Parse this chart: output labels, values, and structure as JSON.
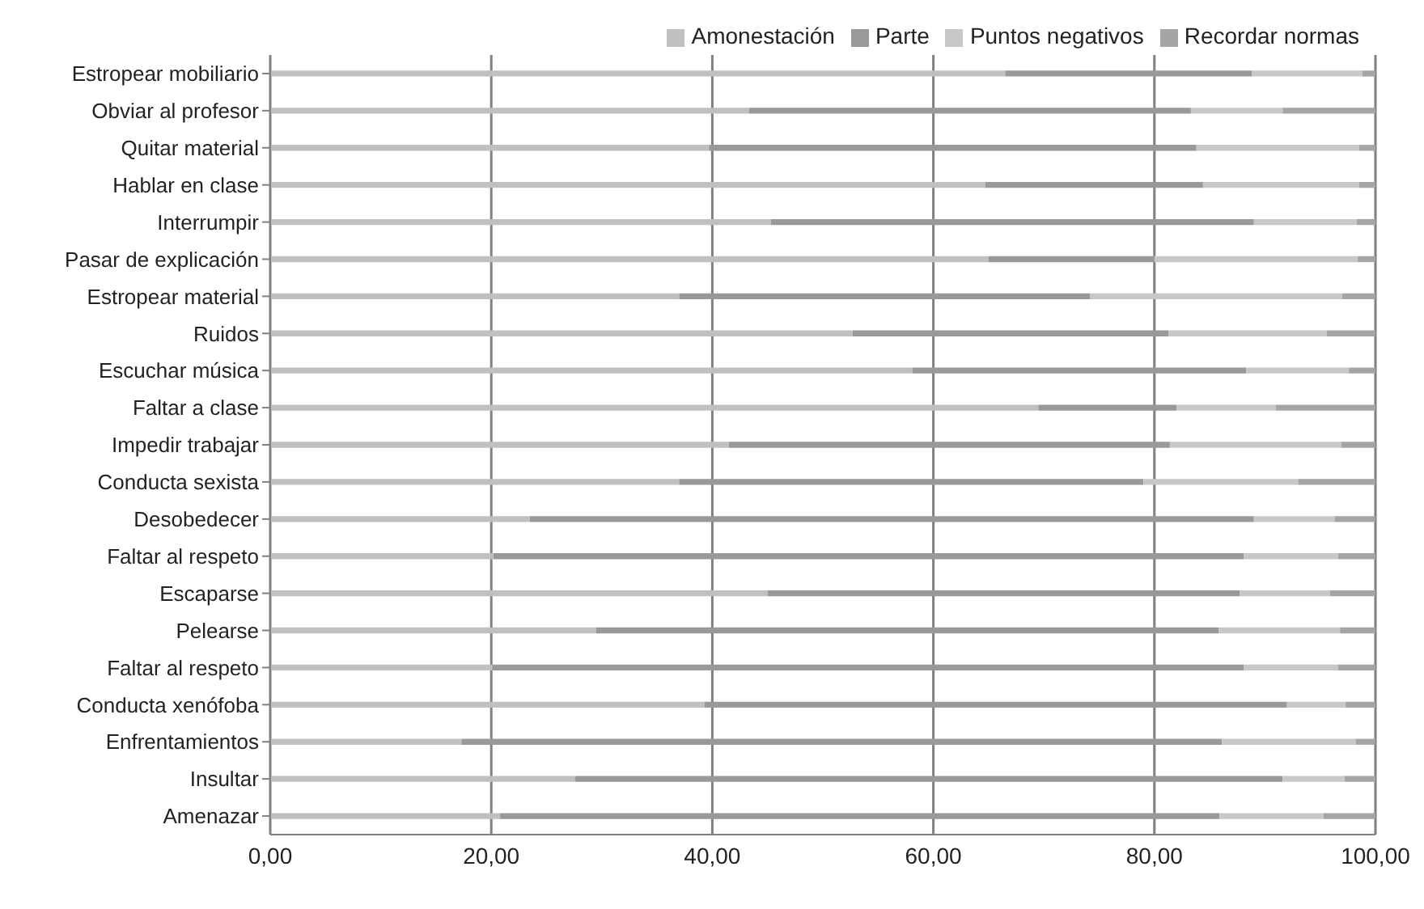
{
  "chart_data": {
    "type": "bar",
    "orientation": "horizontal",
    "stacked": true,
    "categories": [
      "Estropear mobiliario",
      "Obviar al profesor",
      "Quitar material",
      "Hablar en clase",
      "Interrumpir",
      "Pasar de explicación",
      "Estropear material",
      "Ruidos",
      "Escuchar música",
      "Faltar a clase",
      "Impedir trabajar",
      "Conducta sexista",
      "Desobedecer",
      "Faltar al respeto",
      "Escaparse",
      "Pelearse",
      "Faltar al respeto",
      "Conducta xenófoba",
      "Enfrentamientos",
      "Insultar",
      "Amenazar"
    ],
    "series": [
      {
        "name": "Amonestación",
        "color": "#c0c0c0",
        "values": [
          66.5,
          43.3,
          39.7,
          64.7,
          45.3,
          65,
          37,
          52.7,
          58.1,
          69.5,
          41.5,
          37,
          23.5,
          20.2,
          45,
          29.5,
          20.1,
          39.3,
          17.3,
          27.6,
          20.8
        ]
      },
      {
        "name": "Parte",
        "color": "#999999",
        "values": [
          22.3,
          40,
          44.1,
          19.7,
          43.7,
          15,
          37.2,
          28.6,
          30.2,
          12.5,
          39.9,
          42,
          65.5,
          67.9,
          42.7,
          56.3,
          68,
          52.7,
          68.8,
          64,
          65.1
        ]
      },
      {
        "name": "Puntos negativos",
        "color": "#c8c8c8",
        "values": [
          10,
          8.3,
          14.7,
          14.1,
          9.3,
          18.4,
          22.8,
          14.3,
          9.3,
          9,
          15.5,
          14,
          7.3,
          8.5,
          8.2,
          11,
          8.5,
          5.3,
          12.1,
          5.6,
          9.4
        ]
      },
      {
        "name": "Recordar normas",
        "color": "#a5a5a5",
        "values": [
          1.2,
          8.4,
          1.5,
          1.5,
          1.7,
          1.6,
          3,
          4.4,
          2.4,
          9,
          3.1,
          7,
          3.7,
          3.4,
          4.1,
          3.2,
          3.4,
          2.7,
          1.8,
          2.8,
          4.7
        ]
      }
    ],
    "xlim": [
      0,
      100
    ],
    "xticks": [
      {
        "value": 0,
        "label": "0,00"
      },
      {
        "value": 20,
        "label": "20,00"
      },
      {
        "value": 40,
        "label": "40,00"
      },
      {
        "value": 60,
        "label": "60,00"
      },
      {
        "value": 80,
        "label": "80,00"
      },
      {
        "value": 100,
        "label": "100,00"
      }
    ],
    "grid": "x",
    "legend": "top right"
  }
}
